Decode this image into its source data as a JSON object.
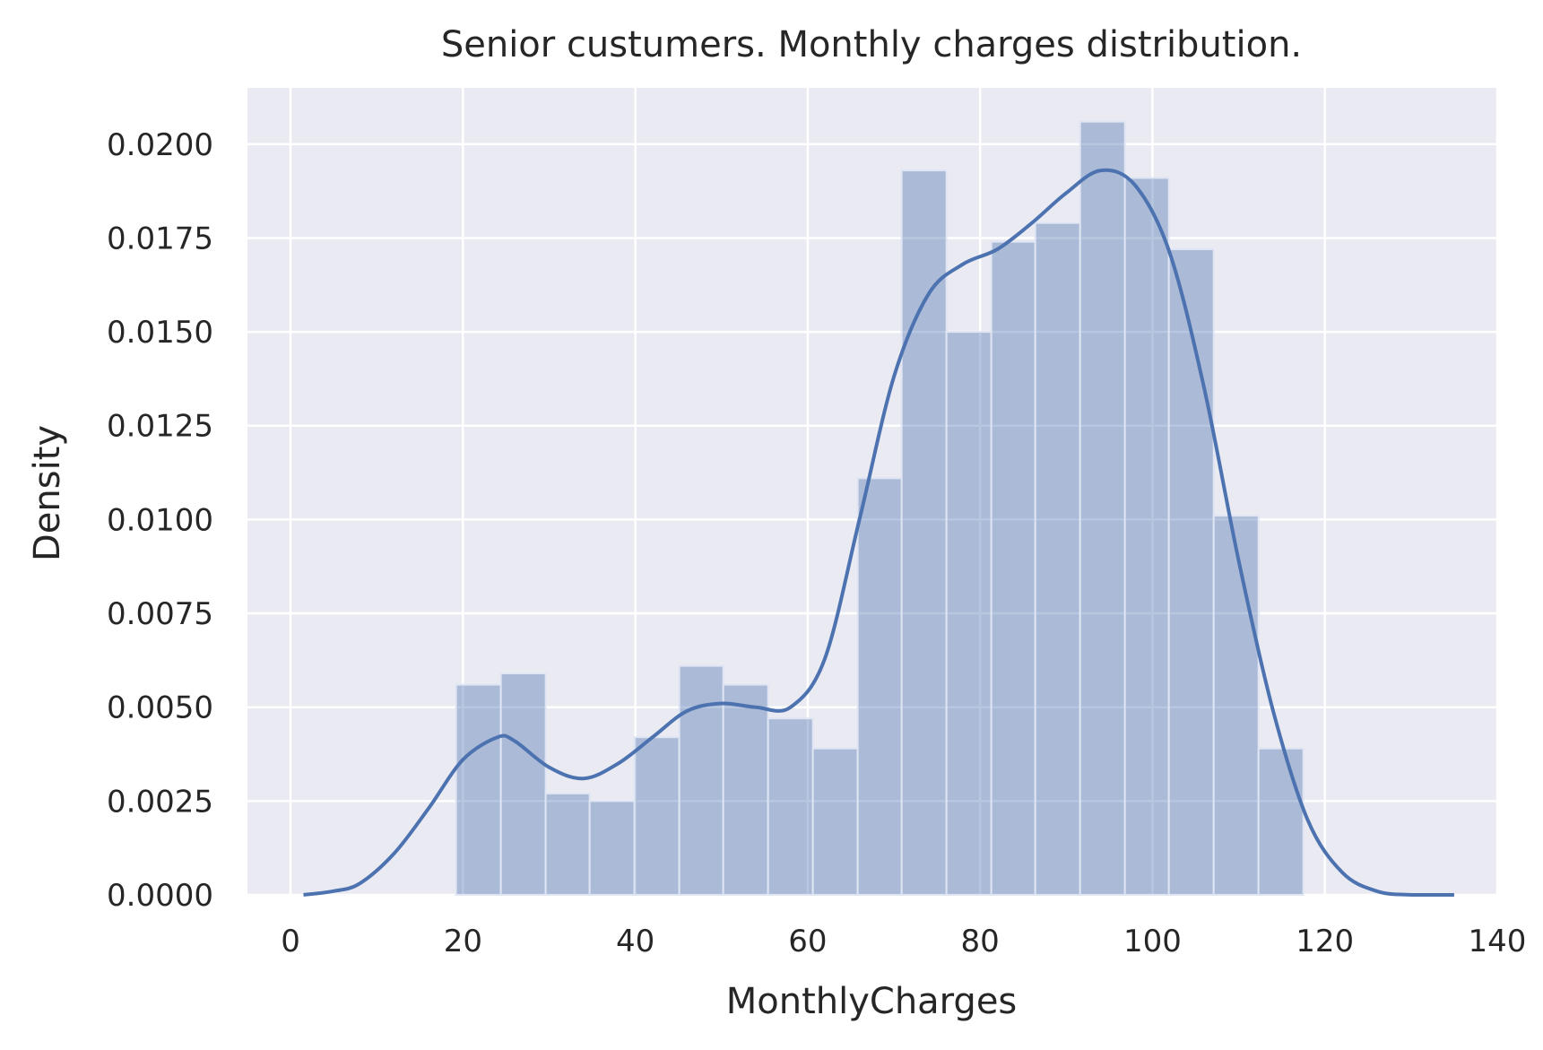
{
  "chart_data": {
    "type": "bar",
    "title": "Senior custumers. Monthly charges distribution.",
    "xlabel": "MonthlyCharges",
    "ylabel": "Density",
    "xlim": [
      -5,
      140
    ],
    "ylim": [
      0,
      0.0215
    ],
    "xticks": [
      0,
      20,
      40,
      60,
      80,
      100,
      120,
      140
    ],
    "xtick_labels": [
      "0",
      "20",
      "40",
      "60",
      "80",
      "100",
      "120",
      "140"
    ],
    "yticks": [
      0,
      0.0025,
      0.005,
      0.0075,
      0.01,
      0.0125,
      0.015,
      0.0175,
      0.02
    ],
    "ytick_labels": [
      "0.0000",
      "0.0025",
      "0.0050",
      "0.0075",
      "0.0100",
      "0.0125",
      "0.0150",
      "0.0175",
      "0.0200"
    ],
    "grid": true,
    "bin_edges": [
      19.2,
      24.4,
      29.6,
      34.7,
      39.9,
      45.1,
      50.2,
      55.4,
      60.6,
      65.8,
      70.9,
      76.1,
      81.3,
      86.4,
      91.6,
      96.8,
      101.9,
      107.1,
      112.3,
      117.5
    ],
    "values": [
      0.0056,
      0.0059,
      0.0027,
      0.0025,
      0.0042,
      0.0061,
      0.0056,
      0.0047,
      0.0039,
      0.0111,
      0.0193,
      0.015,
      0.0174,
      0.0179,
      0.0206,
      0.0191,
      0.0172,
      0.0101,
      0.0039
    ],
    "kde": {
      "x": [
        1.5,
        5,
        8,
        12,
        16,
        20,
        24,
        26,
        30,
        34,
        38,
        42,
        46,
        50,
        54,
        58,
        62,
        66,
        70,
        74,
        78,
        82,
        86,
        90,
        94,
        98,
        102,
        106,
        110,
        114,
        118,
        122,
        126,
        130,
        135
      ],
      "y": [
        0.0,
        0.0001,
        0.0003,
        0.0011,
        0.0023,
        0.0036,
        0.0042,
        0.0041,
        0.0034,
        0.0031,
        0.0035,
        0.0042,
        0.0049,
        0.0051,
        0.005,
        0.005,
        0.0063,
        0.01,
        0.0138,
        0.016,
        0.0168,
        0.0172,
        0.0179,
        0.0187,
        0.0193,
        0.0189,
        0.0171,
        0.0135,
        0.0089,
        0.0049,
        0.002,
        0.0006,
        0.0001,
        0.0,
        0.0
      ]
    },
    "colors": {
      "plot_background": "#eaeaf2",
      "grid": "#ffffff",
      "bar_fill": "#4c72b0",
      "bar_edge": "#dfe5f2",
      "kde_line": "#4c72b0"
    }
  }
}
